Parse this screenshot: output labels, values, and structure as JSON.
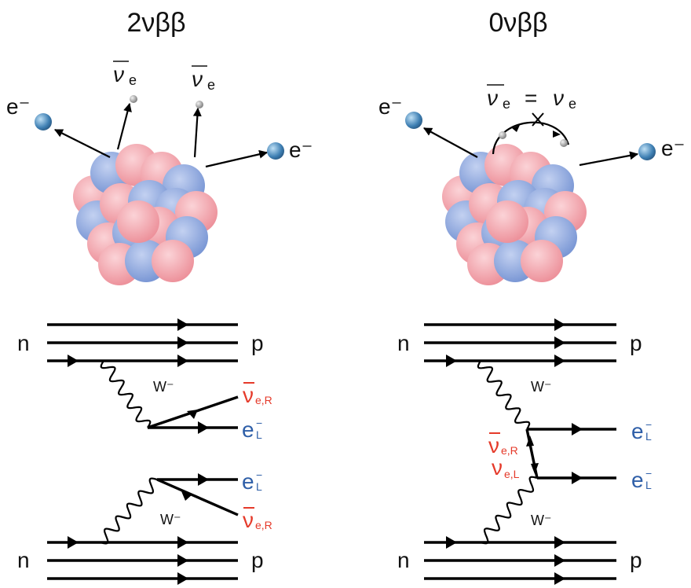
{
  "panels": [
    {
      "title": "2νββ",
      "electron": "e⁻",
      "antineutrino": "ν",
      "antineutrino_sub": "e",
      "incoming": "n",
      "outgoing": "p",
      "boson": "W⁻",
      "nu_bar_r": "ν",
      "nu_bar_r_sub": "e,R",
      "e_left": "e",
      "e_left_sup": "−",
      "e_left_sub": "L"
    },
    {
      "title": "0νββ",
      "electron": "e⁻",
      "nu_equal_left": "ν",
      "nu_equal_left_sub": "e",
      "nu_equal_sign": "=",
      "nu_equal_right": "ν",
      "nu_equal_right_sub": "e",
      "incoming": "n",
      "outgoing": "p",
      "boson": "W⁻",
      "nu_bar_r": "ν",
      "nu_bar_r_sub": "e,R",
      "nu_l": "ν",
      "nu_l_sub": "e,L",
      "e_left": "e",
      "e_left_sup": "−",
      "e_left_sub": "L"
    }
  ],
  "colors": {
    "proton": "#f2a3ab",
    "neutron": "#8ea7dd",
    "neutrino_label": "#e53a2a",
    "electron_label": "#2f5fa8"
  }
}
